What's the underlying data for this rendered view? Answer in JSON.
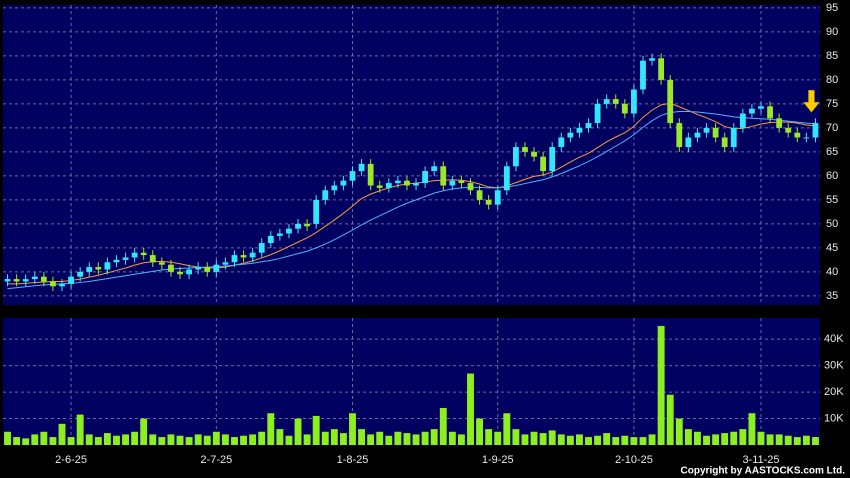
{
  "chart_data": {
    "type": "candlestick",
    "categories": [
      null,
      null,
      null,
      null,
      null,
      null,
      null,
      "2-6-25",
      null,
      null,
      null,
      null,
      null,
      null,
      null,
      null,
      null,
      null,
      null,
      null,
      null,
      null,
      null,
      "2-7-25",
      null,
      null,
      null,
      null,
      null,
      null,
      null,
      null,
      null,
      null,
      null,
      null,
      null,
      null,
      "1-8-25",
      null,
      null,
      null,
      null,
      null,
      null,
      null,
      null,
      null,
      null,
      null,
      null,
      null,
      null,
      null,
      "1-9-25",
      null,
      null,
      null,
      null,
      null,
      null,
      null,
      null,
      null,
      null,
      null,
      null,
      null,
      null,
      "2-10-25",
      null,
      null,
      null,
      null,
      null,
      null,
      null,
      null,
      null,
      null,
      null,
      null,
      null,
      "3-11-25",
      null,
      null,
      null,
      null,
      null,
      null
    ],
    "open": [
      38,
      38.5,
      38,
      38.5,
      39,
      38,
      37,
      37.5,
      39,
      40,
      41,
      40.5,
      42,
      42.5,
      43,
      44,
      43.5,
      42,
      41.5,
      40,
      39.5,
      40.5,
      41,
      40,
      41.5,
      42,
      43.5,
      43,
      44,
      46,
      47.5,
      48,
      49,
      50,
      50,
      55,
      57,
      58,
      59,
      61,
      62.5,
      58,
      57.5,
      58.5,
      59,
      58,
      58.5,
      61,
      62,
      58,
      59,
      58.5,
      57,
      55,
      54,
      57,
      62,
      66,
      65,
      64,
      61,
      66,
      68,
      69,
      70,
      71,
      75,
      76,
      75,
      73,
      78,
      84,
      84.5,
      80,
      71,
      66,
      68,
      69,
      70,
      68,
      66,
      70,
      73,
      74,
      74.5,
      72,
      70,
      69,
      68,
      68
    ],
    "high": [
      39.5,
      39.5,
      39.5,
      40,
      40,
      39,
      38.5,
      40,
      41,
      42,
      42,
      43,
      43.5,
      44,
      45,
      45,
      44.5,
      43,
      42.5,
      41,
      41.5,
      42,
      42,
      42.5,
      43,
      44.5,
      44.5,
      45,
      47,
      48.5,
      49,
      50,
      51,
      51,
      56,
      58,
      59,
      60,
      62,
      63.5,
      63.5,
      59,
      59.5,
      60,
      60,
      59.5,
      62,
      63,
      63,
      60,
      60,
      59.5,
      58,
      56,
      58,
      63,
      67,
      67,
      66,
      65,
      67,
      69,
      70,
      71,
      72,
      76,
      77,
      77,
      76,
      79,
      85,
      85.5,
      85.5,
      81,
      72,
      69,
      70,
      71,
      71,
      69,
      71,
      74,
      75,
      75.5,
      75.5,
      73,
      71,
      70,
      69,
      72
    ],
    "low": [
      37,
      37,
      37,
      37.5,
      37,
      36,
      36,
      36.5,
      38,
      39,
      39.5,
      39.5,
      41,
      41.5,
      42,
      42.5,
      41,
      40.5,
      39,
      38.5,
      38.5,
      39.5,
      39,
      39,
      40.5,
      41,
      42,
      42,
      43,
      45,
      46.5,
      47,
      48,
      48.5,
      49,
      54,
      56,
      57,
      58,
      60,
      57,
      56.5,
      56.5,
      57.5,
      57,
      57,
      57.5,
      60,
      57,
      57,
      57.5,
      56,
      54,
      53,
      53,
      56,
      61,
      64,
      63,
      60,
      60,
      65,
      67,
      68,
      69,
      70,
      74,
      74,
      72,
      72,
      77,
      83,
      79,
      70,
      65,
      65,
      67,
      68,
      67,
      65,
      65,
      69,
      72,
      73,
      71,
      69,
      68,
      67,
      67,
      67
    ],
    "close": [
      38.5,
      38,
      38.5,
      39,
      38,
      37,
      37.5,
      39,
      40,
      41,
      40.5,
      42,
      42.5,
      43,
      44,
      43.5,
      42,
      41.5,
      40,
      39.5,
      40.5,
      41,
      40,
      41.5,
      42,
      43.5,
      43,
      44,
      46,
      47.5,
      48,
      49,
      50,
      49.5,
      55,
      57,
      58,
      59,
      61,
      62.5,
      58,
      57.5,
      58.5,
      59,
      58,
      58.5,
      61,
      62,
      58,
      59,
      58.5,
      57,
      55,
      54,
      57,
      62,
      66,
      65,
      64,
      61,
      66,
      68,
      69,
      70,
      71,
      75,
      76,
      75,
      73,
      78,
      84,
      84.5,
      80,
      71,
      66,
      68,
      69,
      70,
      68,
      66,
      70,
      73,
      74,
      74.5,
      72,
      70,
      69,
      68,
      68,
      71
    ],
    "up_color": "#33e6ff",
    "down_color": "#9be82a",
    "ma_lines": [
      {
        "color": "#ff9933",
        "values": [
          37.5,
          37.5,
          37.6,
          37.8,
          37.9,
          38,
          38,
          38.2,
          38.5,
          38.9,
          39.3,
          39.8,
          40.3,
          40.8,
          41.4,
          41.9,
          42.1,
          42.2,
          42,
          41.7,
          41.3,
          41,
          40.8,
          40.8,
          41,
          41.4,
          41.8,
          42.3,
          42.9,
          43.6,
          44.4,
          45.3,
          46.2,
          47.1,
          48.2,
          49.5,
          50.8,
          52.2,
          53.7,
          55.3,
          56.2,
          56.9,
          57.5,
          58,
          58.3,
          58.5,
          58.7,
          59,
          59.1,
          59.2,
          59.1,
          58.8,
          58.3,
          57.7,
          57.5,
          57.9,
          58.6,
          59.3,
          59.9,
          60.2,
          60.8,
          61.8,
          62.9,
          63.9,
          64.7,
          65.9,
          67.1,
          68.1,
          69,
          70.3,
          72.2,
          73.7,
          74.8,
          75.1,
          74.4,
          73.6,
          72.8,
          72.1,
          71.3,
          70.3,
          69.8,
          69.9,
          70.3,
          70.8,
          71.1,
          71.2,
          71.2,
          71,
          70.6,
          70.4
        ]
      },
      {
        "color": "#4fb3ff",
        "values": [
          36.5,
          36.7,
          36.9,
          37.1,
          37.3,
          37.4,
          37.5,
          37.6,
          37.8,
          38,
          38.3,
          38.6,
          38.9,
          39.2,
          39.5,
          39.8,
          40.1,
          40.4,
          40.6,
          40.7,
          40.8,
          40.9,
          41,
          41.1,
          41.2,
          41.4,
          41.6,
          41.8,
          42.1,
          42.4,
          42.8,
          43.3,
          43.8,
          44.3,
          45,
          45.8,
          46.7,
          47.7,
          48.7,
          49.8,
          50.8,
          51.7,
          52.6,
          53.5,
          54.3,
          55,
          55.7,
          56.4,
          56.9,
          57.3,
          57.5,
          57.6,
          57.6,
          57.5,
          57.5,
          57.7,
          58,
          58.4,
          58.8,
          59.2,
          59.8,
          60.5,
          61.3,
          62.1,
          63,
          64,
          65.1,
          66.2,
          67.3,
          68.6,
          70.1,
          71.5,
          72.6,
          73.2,
          73.4,
          73.4,
          73.3,
          73.1,
          72.9,
          72.6,
          72.3,
          72.1,
          72,
          71.9,
          71.8,
          71.6,
          71.4,
          71.2,
          71,
          70.8
        ]
      }
    ],
    "ylim": [
      33.1,
      95.6
    ],
    "yticks": [
      35,
      40,
      45,
      50,
      55,
      60,
      65,
      70,
      75,
      80,
      85,
      90,
      95
    ],
    "grid": true,
    "volume": {
      "color": "#8cf01e",
      "values": [
        5000,
        3000,
        2500,
        4000,
        5000,
        3000,
        8000,
        3000,
        11500,
        4000,
        3000,
        4500,
        3500,
        4000,
        5000,
        10000,
        4000,
        3000,
        4000,
        3500,
        3000,
        4000,
        3500,
        5000,
        4000,
        3000,
        3500,
        4000,
        5000,
        12000,
        6000,
        3500,
        10000,
        4000,
        11000,
        5000,
        6000,
        4500,
        12000,
        6000,
        4000,
        5000,
        3500,
        5000,
        4500,
        4000,
        5000,
        6000,
        14000,
        5000,
        4000,
        27000,
        10000,
        6000,
        5000,
        12000,
        6000,
        4000,
        5000,
        4500,
        5500,
        4000,
        3500,
        4000,
        3000,
        3500,
        4500,
        3000,
        3500,
        3000,
        3000,
        4000,
        45000,
        19000,
        10000,
        6000,
        5000,
        3500,
        4000,
        4500,
        5000,
        6000,
        12000,
        5000,
        4000,
        4000,
        3500,
        3000,
        3500,
        3000
      ],
      "ylim": [
        0,
        48000
      ],
      "yticks": [
        {
          "value": 10000,
          "label": "10K"
        },
        {
          "value": 20000,
          "label": "20K"
        },
        {
          "value": 30000,
          "label": "30K"
        },
        {
          "value": 40000,
          "label": "40K"
        }
      ]
    },
    "copyright": "Copyright by AASTOCKS.com Ltd."
  }
}
